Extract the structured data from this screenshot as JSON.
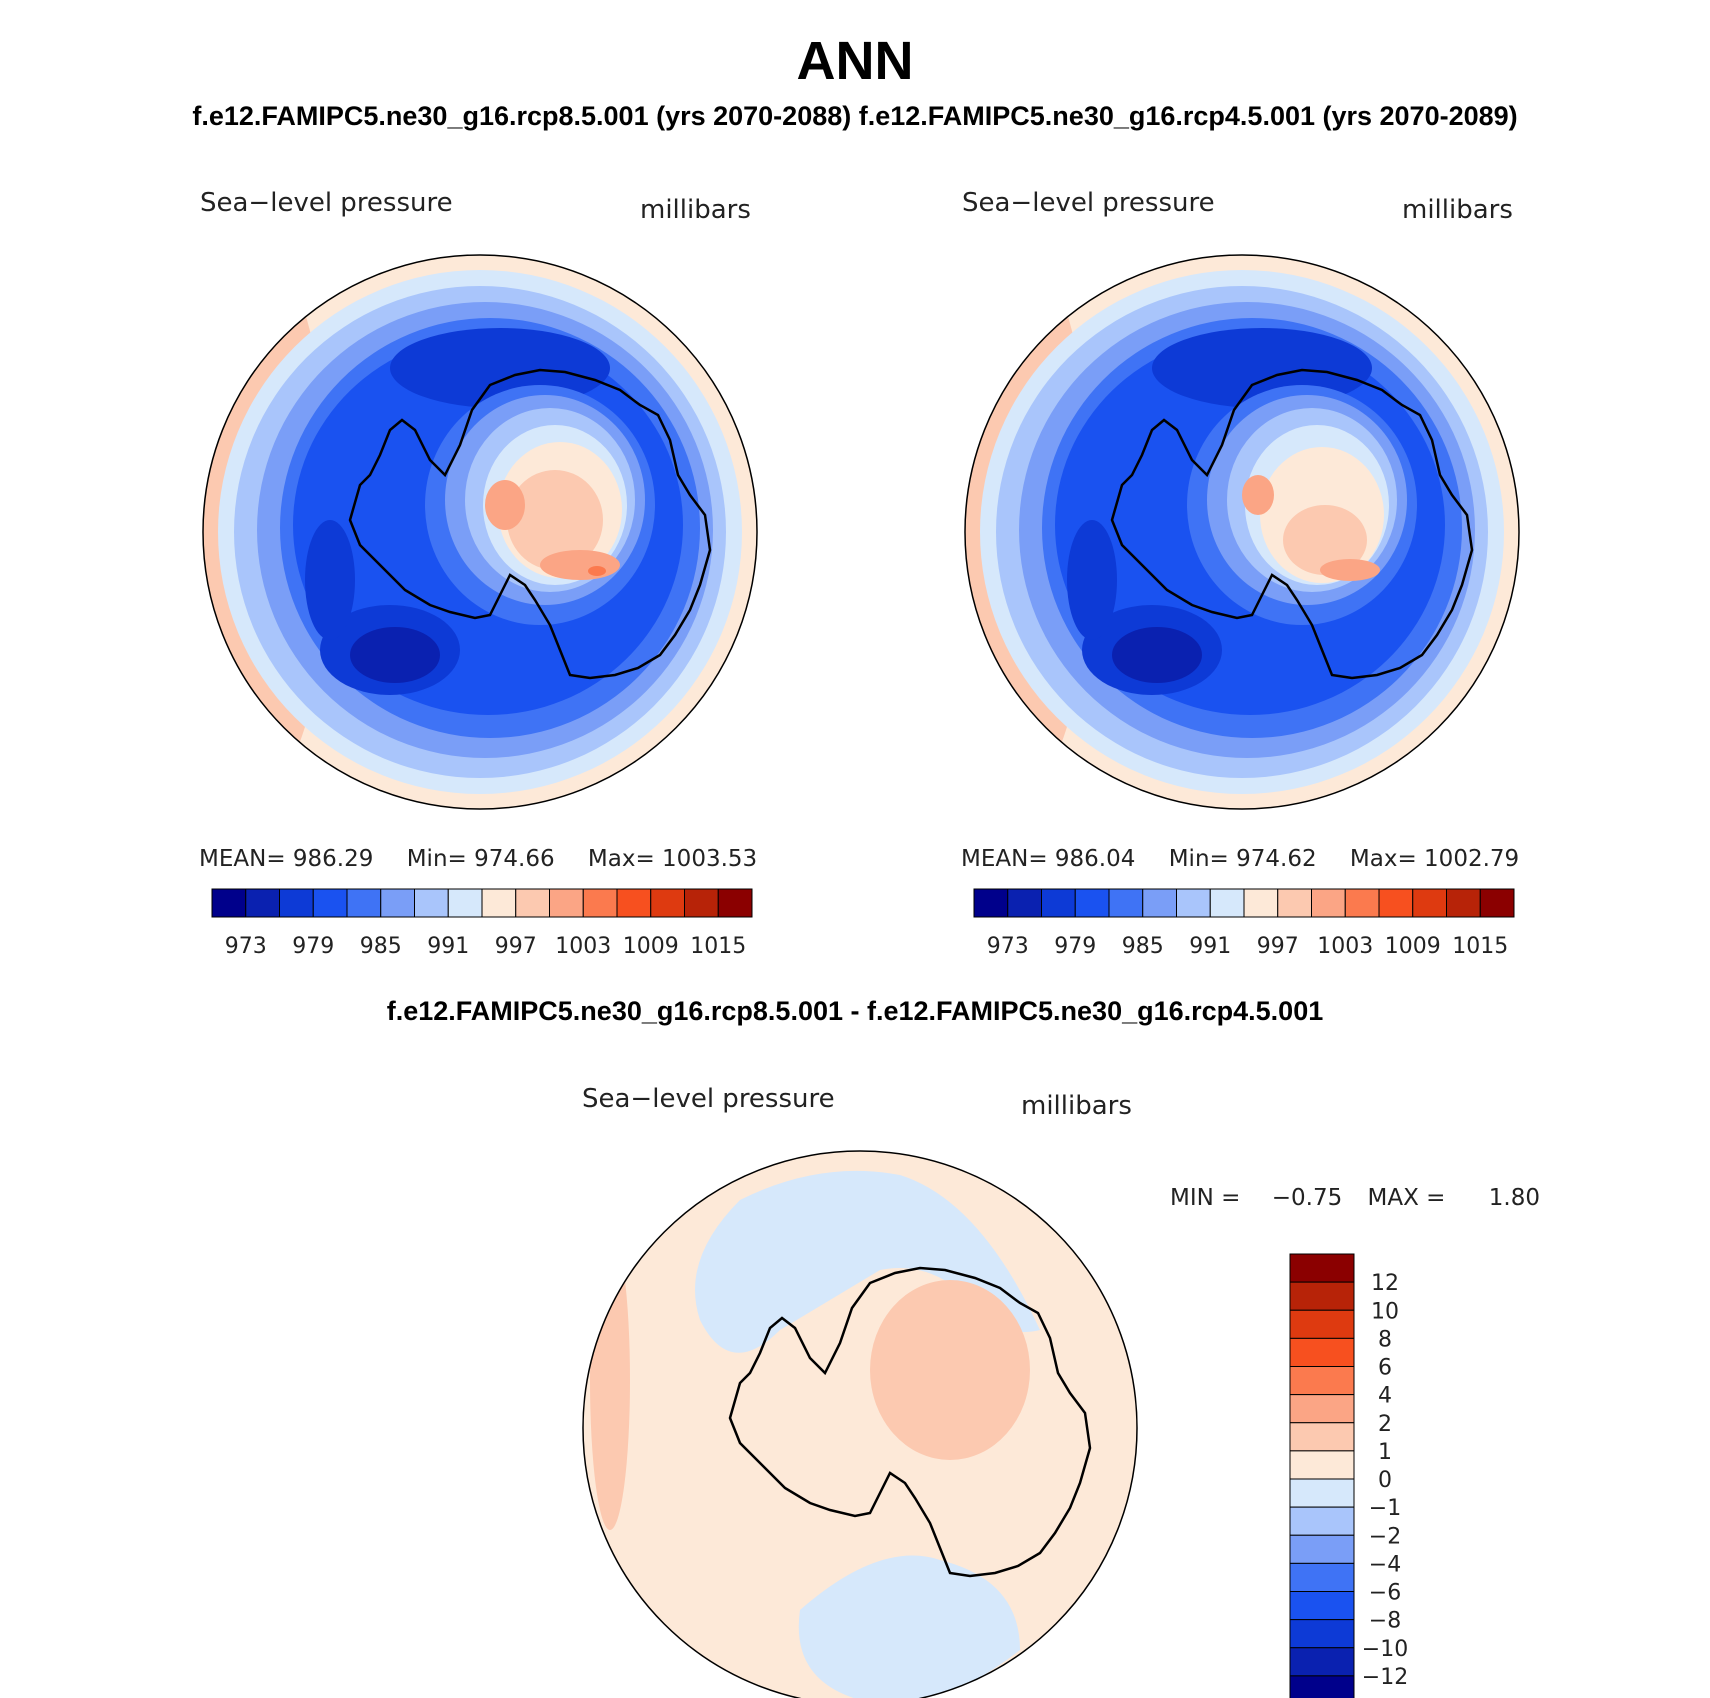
{
  "header": {
    "title": "ANN",
    "subtitle_left": "f.e12.FAMIPC5.ne30_g16.rcp8.5.001 (yrs 2070-2088)",
    "subtitle_right": "f.e12.FAMIPC5.ne30_g16.rcp4.5.001 (yrs 2070-2089)",
    "diff_title": "f.e12.FAMIPC5.ne30_g16.rcp8.5.001 - f.e12.FAMIPC5.ne30_g16.rcp4.5.001"
  },
  "panels": [
    {
      "variable": "Sea−level pressure",
      "units": "millibars",
      "mean_label": "MEAN=",
      "mean": "986.29",
      "min_label": "Min=",
      "min": "974.66",
      "max_label": "Max=",
      "max": "1003.53"
    },
    {
      "variable": "Sea−level pressure",
      "units": "millibars",
      "mean_label": "MEAN=",
      "mean": "986.04",
      "min_label": "Min=",
      "min": "974.62",
      "max_label": "Max=",
      "max": "1002.79"
    }
  ],
  "diff_panel": {
    "variable": "Sea−level pressure",
    "units": "millibars",
    "min_label": "MIN =",
    "min": "−0.75",
    "max_label": "MAX =",
    "max": "1.80"
  },
  "colorbar_top": {
    "colors": [
      "#00008b",
      "#0a21b0",
      "#0d3ad6",
      "#1a52f0",
      "#3f73f5",
      "#7a9ef7",
      "#a9c5fb",
      "#d6e8fb",
      "#fde9d8",
      "#fcc9b0",
      "#fba585",
      "#fb7a4e",
      "#f7501f",
      "#de3a10",
      "#b72308",
      "#8b0000"
    ],
    "tick_labels": [
      "973",
      "979",
      "985",
      "991",
      "997",
      "1003",
      "1009",
      "1015"
    ]
  },
  "colorbar_diff": {
    "colors": [
      "#00008b",
      "#0a21b0",
      "#0d3ad6",
      "#1a52f0",
      "#3f73f5",
      "#7a9ef7",
      "#a9c5fb",
      "#d6e8fb",
      "#fde9d8",
      "#fcc9b0",
      "#fba585",
      "#fb7a4e",
      "#f7501f",
      "#de3a10",
      "#b72308",
      "#8b0000"
    ],
    "tick_labels": [
      "−12",
      "−10",
      "−8",
      "−6",
      "−4",
      "−2",
      "−1",
      "0",
      "1",
      "2",
      "4",
      "6",
      "8",
      "10",
      "12"
    ]
  }
}
